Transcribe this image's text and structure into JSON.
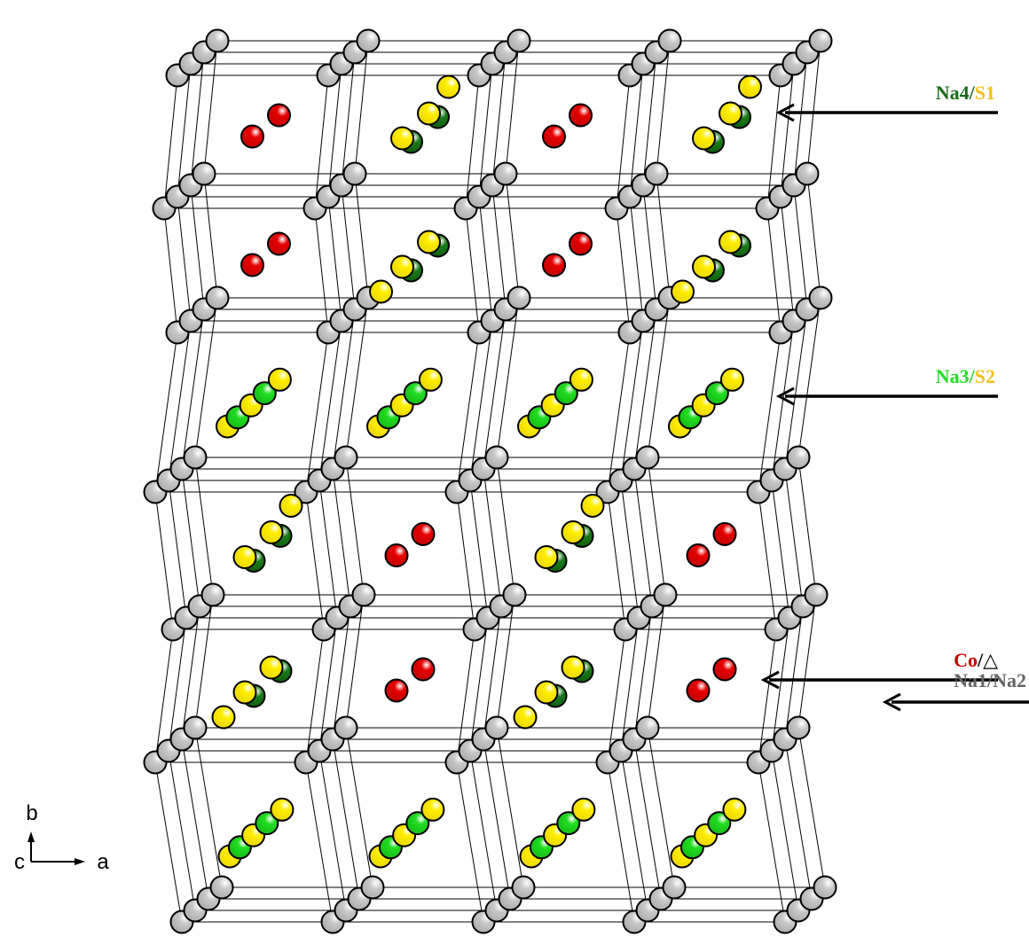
{
  "annotations": [
    {
      "species": "Na4",
      "separator": "/",
      "partner": "S1"
    },
    {
      "species": "Na3",
      "separator": "/",
      "partner": "S2"
    },
    {
      "species": "Co",
      "separator": "/",
      "partner": "△"
    },
    {
      "species": "Na1/Na2"
    }
  ],
  "axes": {
    "vertical": "b",
    "depth": "c",
    "horizontal": "a"
  }
}
